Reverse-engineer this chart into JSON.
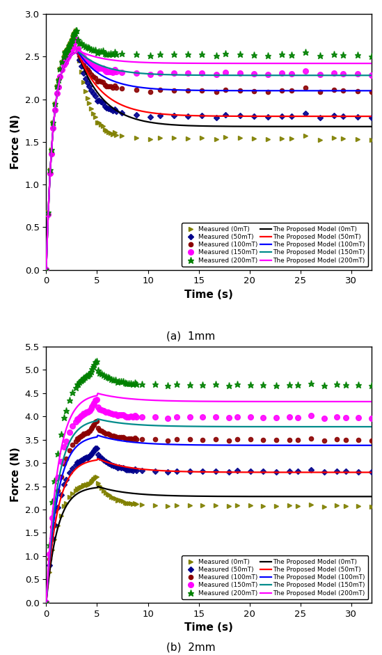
{
  "colors": {
    "0mT": "#808000",
    "50mT": "#00008B",
    "100mT": "#8B0000",
    "150mT": "#FF00FF",
    "200mT": "#008000"
  },
  "line_colors": {
    "0mT": "#000000",
    "50mT": "#FF0000",
    "100mT": "#0000FF",
    "150mT": "#008B8B",
    "200mT": "#FF00FF"
  },
  "subplot_a": {
    "title": "(a)  1mm",
    "ylim": [
      0.0,
      3.0
    ],
    "yticks": [
      0.0,
      0.5,
      1.0,
      1.5,
      2.0,
      2.5,
      3.0
    ],
    "peak_time": 3.0,
    "measured": {
      "0mT": {
        "peak": 2.7,
        "steady": 1.54,
        "tau_decay": 1.2
      },
      "50mT": {
        "peak": 2.6,
        "steady": 1.8,
        "tau_decay": 1.5
      },
      "100mT": {
        "peak": 2.6,
        "steady": 2.1,
        "tau_decay": 1.5
      },
      "150mT": {
        "peak": 2.6,
        "steady": 2.3,
        "tau_decay": 1.5
      },
      "200mT": {
        "peak": 2.7,
        "steady": 2.52,
        "tau_decay": 1.5
      }
    },
    "model": {
      "0mT": {
        "peak": 2.58,
        "steady": 1.68,
        "tau_decay": 2.5
      },
      "50mT": {
        "peak": 2.58,
        "steady": 1.8,
        "tau_decay": 2.5
      },
      "100mT": {
        "peak": 2.58,
        "steady": 2.1,
        "tau_decay": 2.5
      },
      "150mT": {
        "peak": 2.58,
        "steady": 2.28,
        "tau_decay": 2.5
      },
      "200mT": {
        "peak": 2.58,
        "steady": 2.42,
        "tau_decay": 2.5
      }
    }
  },
  "subplot_b": {
    "title": "(b)  2mm",
    "ylim": [
      0.0,
      5.5
    ],
    "yticks": [
      0.0,
      0.5,
      1.0,
      1.5,
      2.0,
      2.5,
      3.0,
      3.5,
      4.0,
      4.5,
      5.0,
      5.5
    ],
    "peak_time": 5.0,
    "measured": {
      "0mT": {
        "peak": 2.6,
        "steady": 2.08,
        "tau_decay": 1.5
      },
      "50mT": {
        "peak": 3.2,
        "steady": 2.82,
        "tau_decay": 1.5
      },
      "100mT": {
        "peak": 3.75,
        "steady": 3.5,
        "tau_decay": 1.5
      },
      "150mT": {
        "peak": 4.2,
        "steady": 3.98,
        "tau_decay": 1.5
      },
      "200mT": {
        "peak": 5.0,
        "steady": 4.68,
        "tau_decay": 1.5
      }
    },
    "model": {
      "0mT": {
        "peak": 2.5,
        "steady": 2.28,
        "tau_decay": 3.0
      },
      "50mT": {
        "peak": 3.1,
        "steady": 2.8,
        "tau_decay": 3.0
      },
      "100mT": {
        "peak": 3.6,
        "steady": 3.38,
        "tau_decay": 3.0
      },
      "150mT": {
        "peak": 3.95,
        "steady": 3.78,
        "tau_decay": 3.0
      },
      "200mT": {
        "peak": 4.5,
        "steady": 4.32,
        "tau_decay": 3.0
      }
    }
  },
  "xlim": [
    0,
    32
  ],
  "xticks": [
    0,
    5,
    10,
    15,
    20,
    25,
    30
  ],
  "xlabel": "Time (s)",
  "ylabel": "Force (N)"
}
